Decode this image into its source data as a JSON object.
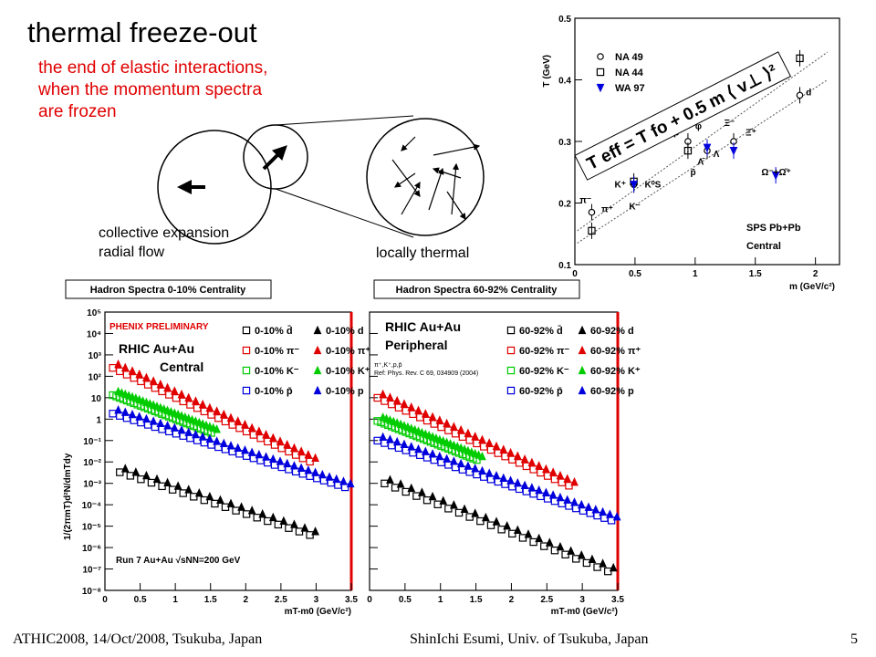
{
  "slide": {
    "title": "thermal freeze-out",
    "subtitle_lines": [
      "the end of elastic interactions,",
      "when the momentum spectra",
      "are frozen"
    ],
    "diagram": {
      "collective_label_lines": [
        "collective expansion",
        "radial flow"
      ],
      "thermal_label": "locally thermal"
    },
    "footer": {
      "left": "ATHIC2008, 14/Oct/2008, Tsukuba, Japan",
      "center": "ShinIchi Esumi, Univ. of Tsukuba, Japan",
      "page": "5"
    }
  },
  "colors": {
    "red": "#e00000",
    "green": "#00cc00",
    "blue": "#0000dd",
    "black": "#000000"
  },
  "chart_data": [
    {
      "id": "sps",
      "type": "scatter",
      "xlabel": "m (GeV/c²)",
      "ylabel": "T (GeV)",
      "xlim": [
        0,
        2.2
      ],
      "ylim": [
        0.1,
        0.5
      ],
      "xticks": [
        "0",
        "0.5",
        "1",
        "1.5",
        "2"
      ],
      "yticks": [
        "0.1",
        "0.2",
        "0.3",
        "0.4",
        "0.5"
      ],
      "legend": [
        "NA 49",
        "NA 44",
        "WA 97"
      ],
      "formula": "T eff = T fo + 0.5 m ⟨ v⊥ ⟩²",
      "annotation_lines": [
        "SPS Pb+Pb",
        "Central"
      ],
      "series": [
        {
          "name": "NA 49",
          "marker": "circle",
          "points": [
            [
              0.14,
              0.185
            ],
            [
              0.49,
              0.23
            ],
            [
              0.94,
              0.3
            ],
            [
              1.1,
              0.285
            ],
            [
              1.32,
              0.3
            ],
            [
              1.87,
              0.375
            ]
          ]
        },
        {
          "name": "NA 44",
          "marker": "square",
          "points": [
            [
              0.14,
              0.155
            ],
            [
              0.49,
              0.235
            ],
            [
              0.94,
              0.285
            ],
            [
              1.87,
              0.435
            ]
          ]
        },
        {
          "name": "WA 97",
          "marker": "triangle-down",
          "points": [
            [
              0.49,
              0.23
            ],
            [
              1.1,
              0.29
            ],
            [
              1.32,
              0.285
            ],
            [
              1.67,
              0.245
            ]
          ]
        }
      ],
      "particle_labels": [
        "π⁻",
        "π⁺",
        "K⁺",
        "K⁻",
        "K⁰S",
        "p",
        "p̄",
        "Λ",
        "Λ̄",
        "φ",
        "Ξ⁻",
        "Ξ̄⁺",
        "Ω⁻+Ω̄⁺",
        "d"
      ]
    },
    {
      "id": "central",
      "type": "scatter",
      "header": "Hadron Spectra 0-10% Centrality",
      "xlabel": "mT-m0 (GeV/c²)",
      "ylabel": "1/(2πmT)d²N/dmTdy",
      "xlim": [
        0,
        3.5
      ],
      "ylog": true,
      "ylim_exp": [
        -8,
        5
      ],
      "xticks": [
        "0",
        "0.5",
        "1",
        "1.5",
        "2",
        "2.5",
        "3",
        "3.5"
      ],
      "preliminary": "PHENIX PRELIMINARY",
      "system_lines": [
        "RHIC Au+Au",
        "Central"
      ],
      "run_label": "Run 7 Au+Au √sNN=200 GeV",
      "legend_left": [
        "0-10% d̄",
        "0-10% π⁻",
        "0-10% K⁻",
        "0-10% p̄"
      ],
      "legend_right": [
        "0-10% d",
        "0-10% π⁺",
        "0-10% K⁺",
        "0-10% p"
      ],
      "series": [
        {
          "name": "pi",
          "color": "red",
          "x_start": 0.15,
          "x_end": 2.95,
          "step": 0.1,
          "y_start": 300,
          "slope": 3.6
        },
        {
          "name": "K",
          "color": "green",
          "x_start": 0.15,
          "x_end": 1.55,
          "step": 0.05,
          "y_start": 16,
          "slope": 2.9
        },
        {
          "name": "p",
          "color": "blue",
          "x_start": 0.15,
          "x_end": 3.45,
          "step": 0.1,
          "y_start": 2.2,
          "slope": 2.4
        },
        {
          "name": "d",
          "color": "black",
          "x_start": 0.25,
          "x_end": 3.0,
          "step": 0.15,
          "y_start": 0.004,
          "slope": 2.5
        }
      ]
    },
    {
      "id": "peripheral",
      "type": "scatter",
      "header": "Hadron Spectra 60-92% Centrality",
      "xlabel": "mT-m0 (GeV/c²)",
      "ylabel": "",
      "xlim": [
        0,
        3.5
      ],
      "ylog": true,
      "ylim_exp": [
        -8,
        5
      ],
      "xticks": [
        "0",
        "0.5",
        "1",
        "1.5",
        "2",
        "2.5",
        "3",
        "3.5"
      ],
      "system_lines": [
        "RHIC Au+Au",
        "Peripheral"
      ],
      "ref_lines": [
        "π⁺,K⁺,p,p̄",
        "Ref: Phys. Rev. C 69, 034909 (2004)"
      ],
      "legend_left": [
        "60-92% d̄",
        "60-92% π⁻",
        "60-92% K⁻",
        "60-92% p̄"
      ],
      "legend_right": [
        "60-92% d",
        "60-92% π⁺",
        "60-92% K⁺",
        "60-92% p"
      ],
      "series": [
        {
          "name": "pi",
          "color": "red",
          "x_start": 0.15,
          "x_end": 2.85,
          "step": 0.1,
          "y_start": 12,
          "slope": 3.5
        },
        {
          "name": "K",
          "color": "green",
          "x_start": 0.15,
          "x_end": 1.55,
          "step": 0.05,
          "y_start": 1.0,
          "slope": 3.0
        },
        {
          "name": "p",
          "color": "blue",
          "x_start": 0.15,
          "x_end": 3.45,
          "step": 0.1,
          "y_start": 0.12,
          "slope": 2.6
        },
        {
          "name": "d",
          "color": "black",
          "x_start": 0.25,
          "x_end": 3.45,
          "step": 0.15,
          "y_start": 0.0012,
          "slope": 3.0
        }
      ]
    }
  ]
}
